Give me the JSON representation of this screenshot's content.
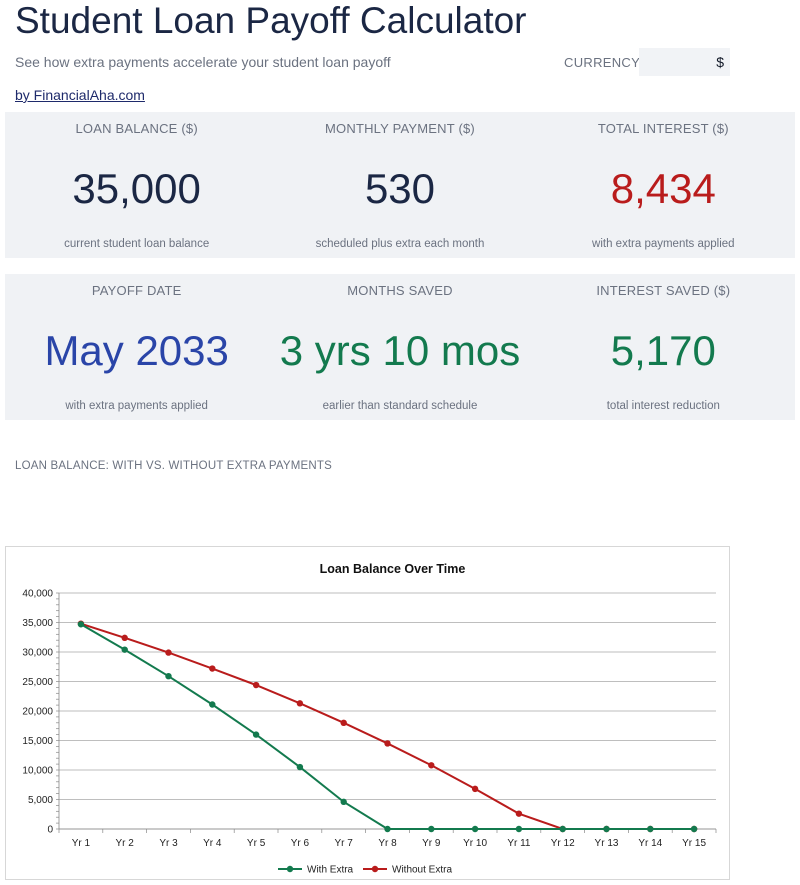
{
  "header": {
    "title": "Student Loan Payoff Calculator",
    "subtitle": "See how extra payments accelerate your student loan payoff",
    "byline": "by FinancialAha.com",
    "currency_label": "CURRENCY",
    "currency_value": "$"
  },
  "cards": [
    {
      "label": "LOAN BALANCE ($)",
      "value": "35,000",
      "note": "current student loan balance"
    },
    {
      "label": "MONTHLY PAYMENT ($)",
      "value": "530",
      "note": "scheduled plus extra each month"
    },
    {
      "label": "TOTAL INTEREST ($)",
      "value": "8,434",
      "note": "with extra payments applied"
    },
    {
      "label": "PAYOFF DATE",
      "value": "May 2033",
      "note": "with extra payments applied"
    },
    {
      "label": "MONTHS SAVED",
      "value": "3 yrs 10 mos",
      "note": "earlier than standard schedule"
    },
    {
      "label": "INTEREST SAVED ($)",
      "value": "5,170",
      "note": "total interest reduction"
    }
  ],
  "colors": {
    "dark": "#1b2744",
    "red": "#b91c1c",
    "blue": "#2a45a8",
    "green": "#137a4e",
    "series_with_extra": "#137a4e",
    "series_without_extra": "#b91c1c"
  },
  "section_label": "LOAN BALANCE: WITH VS. WITHOUT EXTRA PAYMENTS",
  "chart_data": {
    "type": "line",
    "title": "Loan Balance Over Time",
    "xlabel": "",
    "ylabel": "",
    "categories": [
      "Yr 1",
      "Yr 2",
      "Yr 3",
      "Yr 4",
      "Yr 5",
      "Yr 6",
      "Yr 7",
      "Yr 8",
      "Yr 9",
      "Yr 10",
      "Yr 11",
      "Yr 12",
      "Yr 13",
      "Yr 14",
      "Yr 15"
    ],
    "ylim": [
      0,
      40000
    ],
    "yticks": [
      0,
      5000,
      10000,
      15000,
      20000,
      25000,
      30000,
      35000,
      40000
    ],
    "ytick_labels": [
      "0",
      "5,000",
      "10,000",
      "15,000",
      "20,000",
      "25,000",
      "30,000",
      "35,000",
      "40,000"
    ],
    "grid": true,
    "legend_position": "bottom",
    "series": [
      {
        "name": "With Extra",
        "values": [
          34700,
          30400,
          25900,
          21100,
          16000,
          10500,
          4600,
          0,
          0,
          0,
          0,
          0,
          0,
          0,
          0
        ]
      },
      {
        "name": "Without Extra",
        "values": [
          34800,
          32400,
          29900,
          27200,
          24400,
          21300,
          18000,
          14500,
          10800,
          6800,
          2600,
          0,
          0,
          0,
          0
        ]
      }
    ]
  }
}
